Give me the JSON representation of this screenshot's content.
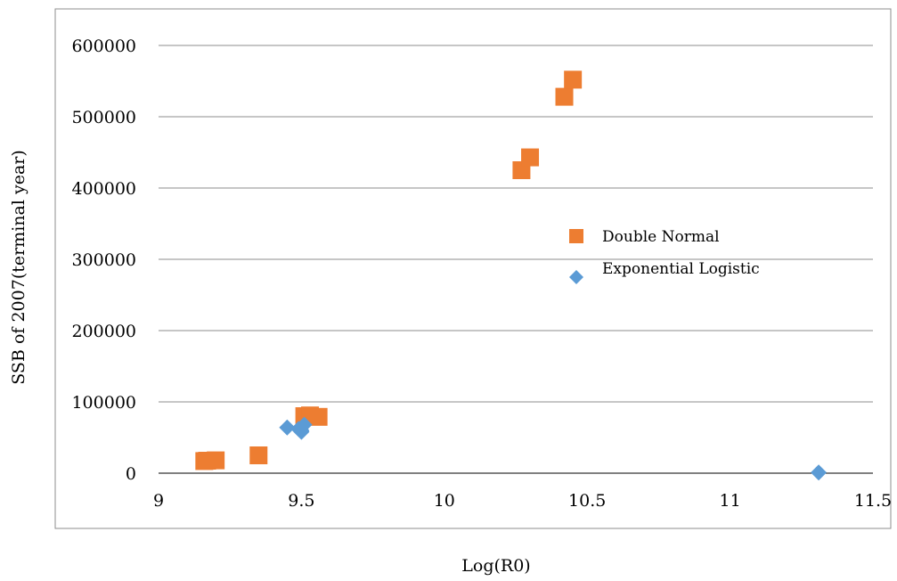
{
  "chart_data": {
    "type": "scatter",
    "title": "",
    "xlabel": "Log(R0)",
    "ylabel": "SSB of 2007(terminal year)",
    "xlim": [
      9,
      11.5
    ],
    "ylim": [
      0,
      600000
    ],
    "x_ticks": [
      "9",
      "9.5",
      "10",
      "10.5",
      "11",
      "11.5"
    ],
    "y_ticks": [
      "0",
      "100000",
      "200000",
      "300000",
      "400000",
      "500000",
      "600000"
    ],
    "grid": "horizontal",
    "legend_position": "right",
    "series": [
      {
        "name": "Double Normal",
        "marker": "square",
        "color": "#ED7D31",
        "points": [
          [
            9.16,
            17000
          ],
          [
            9.2,
            18000
          ],
          [
            9.17,
            17500
          ],
          [
            9.35,
            25000
          ],
          [
            9.51,
            80000
          ],
          [
            9.53,
            81000
          ],
          [
            9.56,
            79000
          ],
          [
            10.27,
            425000
          ],
          [
            10.3,
            443000
          ],
          [
            10.42,
            528000
          ],
          [
            10.45,
            552000
          ]
        ]
      },
      {
        "name": "Exponential Logistic",
        "marker": "diamond",
        "color": "#5B9BD5",
        "points": [
          [
            9.45,
            64000
          ],
          [
            9.49,
            62000
          ],
          [
            9.5,
            58000
          ],
          [
            9.51,
            68000
          ],
          [
            9.5,
            60000
          ],
          [
            11.31,
            1000
          ]
        ]
      }
    ]
  }
}
